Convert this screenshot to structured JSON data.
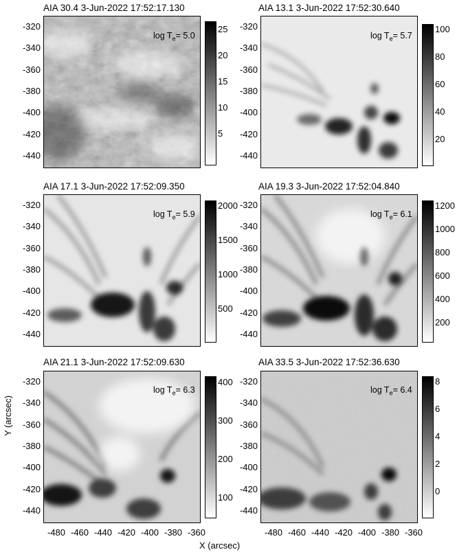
{
  "panels": [
    {
      "title": "AIA 30.4  3-Jun-2022 17:52:17.130",
      "temp_prefix": "log T",
      "temp_sub": "e",
      "temp_value": "= 5.0",
      "cbar_ticks": [
        "25",
        "20",
        "15",
        "10",
        "5"
      ]
    },
    {
      "title": "AIA 13.1  3-Jun-2022 17:52:30.640",
      "temp_prefix": "log T",
      "temp_sub": "e",
      "temp_value": "= 5.7",
      "cbar_ticks": [
        "100",
        "80",
        "60",
        "40",
        "20"
      ]
    },
    {
      "title": "AIA 17.1  3-Jun-2022 17:52:09.350",
      "temp_prefix": "log T",
      "temp_sub": "e",
      "temp_value": "= 5.9",
      "cbar_ticks": [
        "2000",
        "1500",
        "1000",
        "500"
      ]
    },
    {
      "title": "AIA 19.3  3-Jun-2022 17:52:04.840",
      "temp_prefix": "log T",
      "temp_sub": "e",
      "temp_value": "= 6.1",
      "cbar_ticks": [
        "1200",
        "1000",
        "800",
        "600",
        "400",
        "200"
      ]
    },
    {
      "title": "AIA 21.1  3-Jun-2022 17:52:09.630",
      "temp_prefix": "log T",
      "temp_sub": "e",
      "temp_value": "= 6.3",
      "cbar_ticks": [
        "400",
        "300",
        "200",
        "100"
      ]
    },
    {
      "title": "AIA 33.5  3-Jun-2022 17:52:36.630",
      "temp_prefix": "log T",
      "temp_sub": "e",
      "temp_value": "= 6.4",
      "cbar_ticks": [
        "8",
        "6",
        "4",
        "2",
        "0"
      ]
    }
  ],
  "y_ticks": [
    "-320",
    "-340",
    "-360",
    "-380",
    "-400",
    "-420",
    "-440"
  ],
  "x_ticks": [
    "-480",
    "-460",
    "-440",
    "-420",
    "-400",
    "-380",
    "-360"
  ],
  "x_label": "X (arcsec)",
  "y_label": "Y (arcsec)"
}
